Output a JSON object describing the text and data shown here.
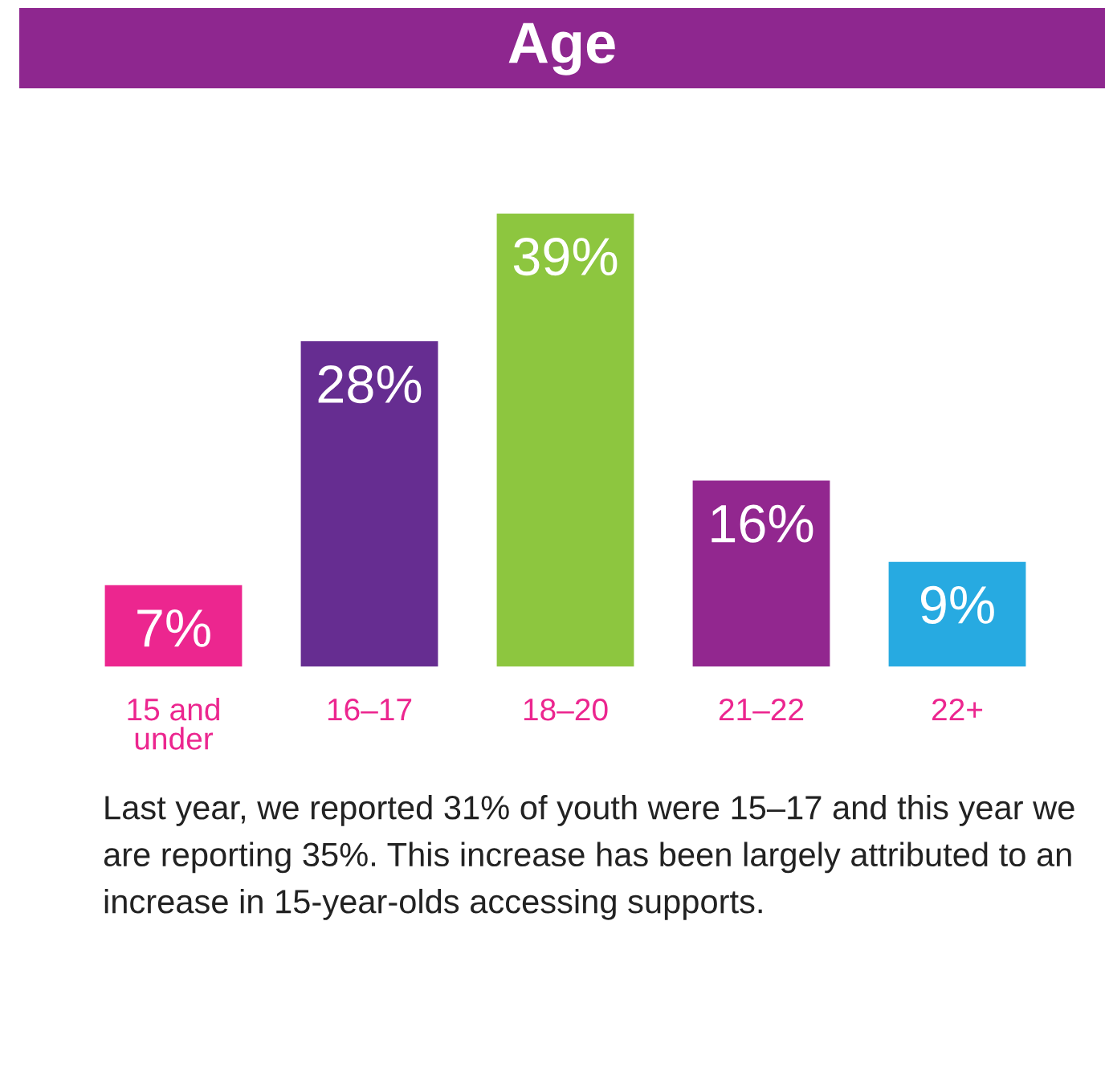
{
  "chart_data": {
    "type": "bar",
    "title": "Age",
    "categories": [
      "15 and under",
      "16–17",
      "18–20",
      "21–22",
      "22+"
    ],
    "values": [
      7,
      28,
      39,
      16,
      9
    ],
    "value_labels": [
      "7%",
      "28%",
      "39%",
      "16%",
      "9%"
    ],
    "colors": [
      "#ec268f",
      "#662d91",
      "#8dc63f",
      "#92278f",
      "#27aae1"
    ],
    "annotations": [
      "Last year, we reported 31% of youth were 15–17 and this year we are reporting 35%. This increase has been largely attributed to an increase in 15-year-olds accessing supports."
    ]
  }
}
